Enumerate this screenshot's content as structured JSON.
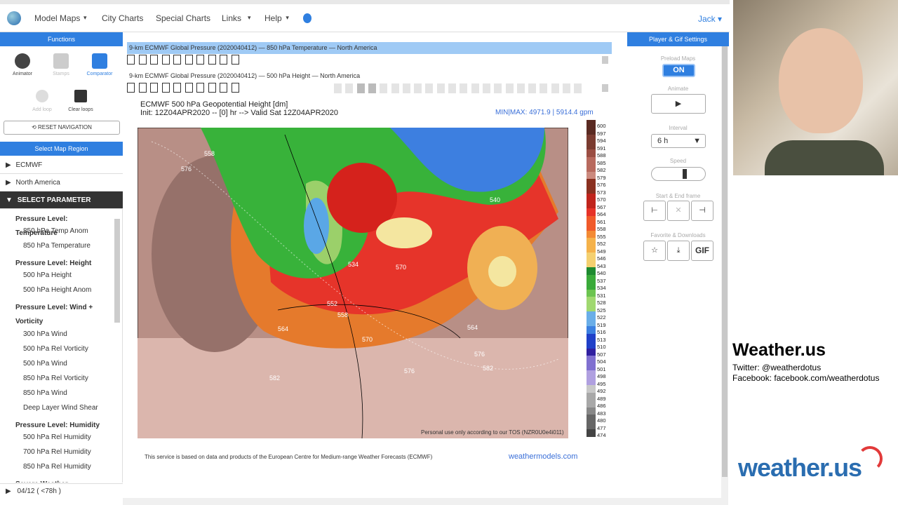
{
  "nav": {
    "menu": [
      "Model Maps",
      "City Charts",
      "Special Charts",
      "Links",
      "Help"
    ],
    "user": "Jack"
  },
  "sidebar": {
    "functions_title": "Functions",
    "tools": [
      "Animator",
      "Stamps",
      "Comparator"
    ],
    "loops": [
      "Add loop",
      "Clear loops"
    ],
    "reset": "RESET NAVIGATION",
    "region_title": "Select Map Region",
    "tree": [
      "ECMWF",
      "North America",
      "SELECT PARAMETER"
    ],
    "parameters": [
      {
        "group": "Pressure Level: Temperature",
        "items": [
          "850 hPa Temp Anom",
          "850 hPa Temperature"
        ]
      },
      {
        "group": "Pressure Level: Height",
        "items": [
          "500 hPa Height",
          "500 hPa Height Anom"
        ]
      },
      {
        "group": "Pressure Level: Wind + Vorticity",
        "items": [
          "300 hPa Wind",
          "500 hPa Rel Vorticity",
          "500 hPa Wind",
          "850 hPa Rel Vorticity",
          "850 hPa Wind",
          "Deep Layer Wind Shear"
        ]
      },
      {
        "group": "Pressure Level: Humidity",
        "items": [
          "500 hPa Rel Humidity",
          "700 hPa Rel Humidity",
          "850 hPa Rel Humidity"
        ]
      },
      {
        "group": "Severe Weather",
        "items": []
      }
    ],
    "time": "04/12 ( <78h )"
  },
  "main": {
    "rows": [
      "9-km ECMWF Global Pressure (2020040412) — 850 hPa Temperature — North America",
      "9-km ECMWF Global Pressure (2020040412) — 500 hPa Height — North America"
    ],
    "map_title": "ECMWF 500 hPa Geopotential Height [dm]",
    "map_init": "Init: 12Z04APR2020 -- [0] hr --> Valid Sat 12Z04APR2020",
    "minmax": "MIN|MAX: 4971.9 | 5914.4 gpm",
    "map_labels": [
      "558",
      "576",
      "534",
      "570",
      "564",
      "552",
      "558",
      "570",
      "576",
      "582",
      "564",
      "576",
      "582",
      "540"
    ],
    "map_notice": "Personal use only according to our TOS (NZR0U0e4i011)",
    "colorbar": [
      "600",
      "597",
      "594",
      "591",
      "588",
      "585",
      "582",
      "579",
      "576",
      "573",
      "570",
      "567",
      "564",
      "561",
      "558",
      "555",
      "552",
      "549",
      "546",
      "543",
      "540",
      "537",
      "534",
      "531",
      "528",
      "525",
      "522",
      "519",
      "516",
      "513",
      "510",
      "507",
      "504",
      "501",
      "498",
      "495",
      "492",
      "489",
      "486",
      "483",
      "480",
      "477",
      "474"
    ],
    "footnote": "This service is based on data and products of the European Centre for Medium-range Weather Forecasts (ECMWF)",
    "site": "weathermodels.com"
  },
  "player": {
    "title": "Player & Gif Settings",
    "preload": "Preload Maps",
    "on": "ON",
    "animate": "Animate",
    "interval": "Interval",
    "interval_value": "6 h",
    "speed": "Speed",
    "frames": "Start & End frame",
    "downloads": "Favorite & Downloads",
    "gif": "GIF"
  },
  "overlay": {
    "brand": "Weather.us",
    "twitter": "Twitter: @weatherdotus",
    "facebook": "Facebook: facebook.com/weatherdotus",
    "logo": "weather.us"
  }
}
